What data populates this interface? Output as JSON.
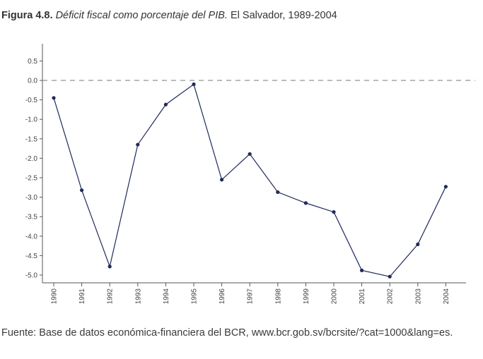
{
  "caption": {
    "figure_label": "Figura 4.8.",
    "title_italic": "Déficit fiscal como porcentaje del PIB.",
    "subtitle": "El Salvador, 1989-2004"
  },
  "source": "Fuente: Base de datos económica-financiera del BCR, www.bcr.gob.sv/bcrsite/?cat=1000&lang=es.",
  "chart_data": {
    "type": "line",
    "title": "Déficit fiscal como porcentaje del PIB. El Salvador, 1989-2004",
    "xlabel": "",
    "ylabel": "",
    "x": [
      "1990",
      "1991",
      "1992",
      "1993",
      "1994",
      "1995",
      "1996",
      "1997",
      "1998",
      "1999",
      "2000",
      "2001",
      "2002",
      "2003",
      "2004"
    ],
    "series": [
      {
        "values": [
          -0.45,
          -2.82,
          -4.78,
          -1.65,
          -0.62,
          -0.1,
          -2.55,
          -1.89,
          -2.87,
          -3.15,
          -3.38,
          -4.88,
          -5.04,
          -4.21,
          -2.73
        ]
      }
    ],
    "ylim": [
      -5.2,
      1.0
    ],
    "yticks": [
      0.5,
      0.0,
      -0.5,
      -1.0,
      -1.5,
      -2.0,
      -2.5,
      -3.0,
      -3.5,
      -4.0,
      -4.5,
      -5.0
    ],
    "ytick_labels": [
      "0.5",
      "0.0",
      "-0.5",
      "-1.0",
      "-1.5",
      "-2.0",
      "-2.5",
      "-3.0",
      "-3.5",
      "-4.0",
      "-4.5",
      "-5.0"
    ],
    "reference_line": 0.0,
    "grid": false,
    "colors": {
      "line": "#1f2a5c",
      "marker": "#1f2a5c",
      "axis": "#555555",
      "reference": "#777777"
    }
  }
}
